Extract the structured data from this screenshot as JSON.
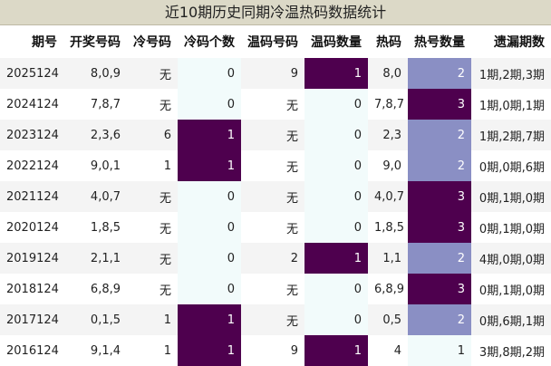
{
  "title": "近10期历史同期冷温热码数据统计",
  "headers": [
    "期号",
    "开奖号码",
    "冷号码",
    "冷码个数",
    "温码号码",
    "温码数量",
    "热码",
    "热号数量",
    "遗漏期数"
  ],
  "rows": [
    [
      "2025124",
      "8,0,9",
      "无",
      "0",
      "9",
      "1",
      "8,0",
      "2",
      "1期,2期,3期"
    ],
    [
      "2024124",
      "7,8,7",
      "无",
      "0",
      "无",
      "0",
      "7,8,7",
      "3",
      "1期,0期,1期"
    ],
    [
      "2023124",
      "2,3,6",
      "6",
      "1",
      "无",
      "0",
      "2,3",
      "2",
      "1期,2期,7期"
    ],
    [
      "2022124",
      "9,0,1",
      "1",
      "1",
      "无",
      "0",
      "9,0",
      "2",
      "0期,0期,6期"
    ],
    [
      "2021124",
      "4,0,7",
      "无",
      "0",
      "无",
      "0",
      "4,0,7",
      "3",
      "0期,1期,0期"
    ],
    [
      "2020124",
      "1,8,5",
      "无",
      "0",
      "无",
      "0",
      "1,8,5",
      "3",
      "0期,1期,0期"
    ],
    [
      "2019124",
      "2,1,1",
      "无",
      "0",
      "2",
      "1",
      "1,1",
      "2",
      "4期,0期,0期"
    ],
    [
      "2018124",
      "6,8,9",
      "无",
      "0",
      "无",
      "0",
      "6,8,9",
      "3",
      "0期,1期,0期"
    ],
    [
      "2017124",
      "0,1,5",
      "1",
      "1",
      "无",
      "0",
      "0,5",
      "2",
      "0期,6期,1期"
    ],
    [
      "2016124",
      "9,1,4",
      "1",
      "1",
      "9",
      "1",
      "4",
      "1",
      "3期,8期,2期"
    ]
  ],
  "colors": {
    "dark_highlight": "#4e004e",
    "light_highlight": "#8a8fc4",
    "title_bg": "#dcd9c7"
  }
}
